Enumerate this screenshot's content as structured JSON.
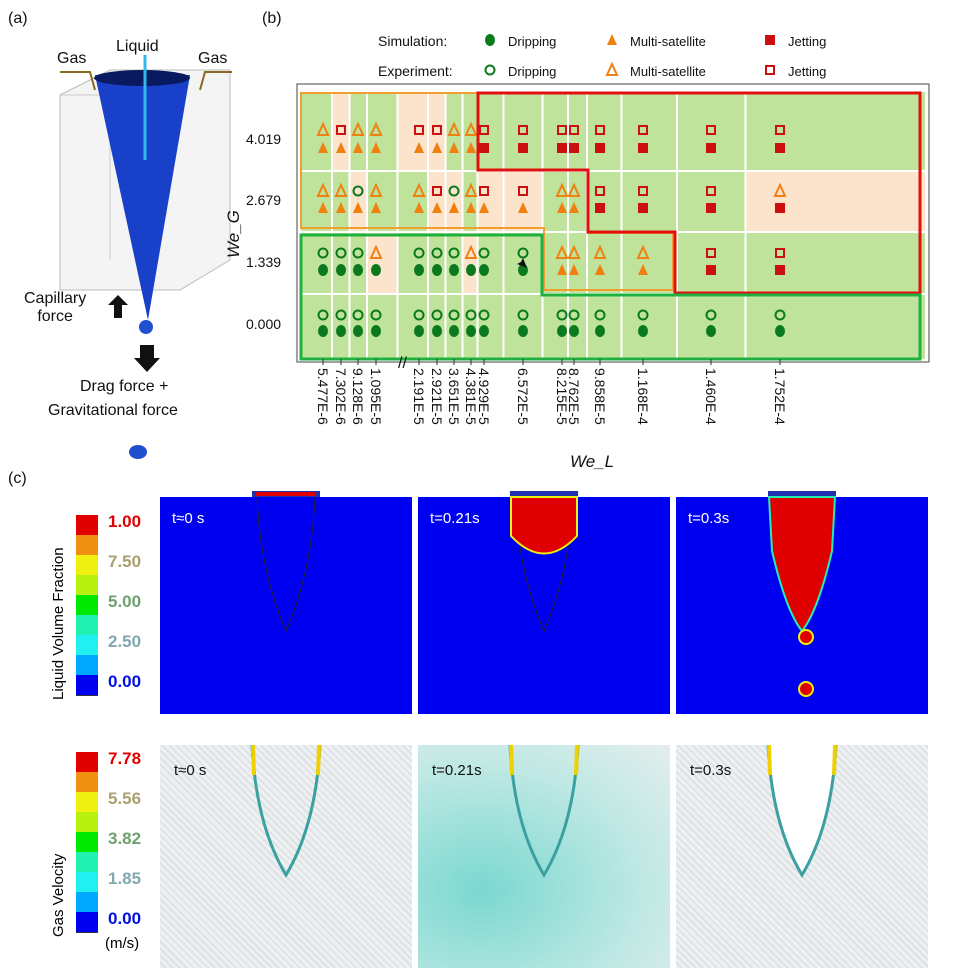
{
  "panels": {
    "a": "(a)",
    "b": "(b)",
    "c": "(c)"
  },
  "panel_a": {
    "liquid": "Liquid",
    "gas_left": "Gas",
    "gas_right": "Gas",
    "capillary": "Capillary\nforce",
    "drag": "Drag force +",
    "grav": "Gravitational force"
  },
  "chart_data": {
    "type": "scatter",
    "title": "",
    "xlabel": "We_L",
    "ylabel": "We_G",
    "legend": {
      "simulation_label": "Simulation:",
      "experiment_label": "Experiment:",
      "entries": [
        "Dripping",
        "Multi-satellite",
        "Jetting"
      ],
      "placement": "top"
    },
    "x_ticks": [
      "5.477E-6",
      "7.302E-6",
      "9.128E-6",
      "1.095E-5",
      "2.191E-5",
      "2.921E-5",
      "3.651E-5",
      "4.381E-5",
      "4.929E-5",
      "6.572E-5",
      "8.215E-5",
      "8.762E-5",
      "9.858E-5",
      "1.168E-4",
      "1.460E-4",
      "1.752E-4"
    ],
    "y_ticks": [
      "4.019",
      "2.679",
      "1.339",
      "0.000"
    ],
    "simulation": [
      [
        "M",
        "M",
        "M",
        "M",
        "M",
        "M",
        "M",
        "M",
        "J",
        "J",
        "J",
        "J",
        "J",
        "J",
        "J",
        "J"
      ],
      [
        "M",
        "M",
        "M",
        "M",
        "M",
        "M",
        "M",
        "M",
        "M",
        "M",
        "M",
        "M",
        "J",
        "J",
        "J",
        "J"
      ],
      [
        "D",
        "D",
        "D",
        "D",
        "D",
        "D",
        "D",
        "D",
        "D",
        "D",
        "M",
        "M",
        "M",
        "M",
        "J",
        "J"
      ],
      [
        "D",
        "D",
        "D",
        "D",
        "D",
        "D",
        "D",
        "D",
        "D",
        "D",
        "D",
        "D",
        "D",
        "D",
        "D",
        "D"
      ]
    ],
    "experiment": [
      [
        "M",
        "J",
        "M",
        "M",
        "J",
        "J",
        "M",
        "M",
        "J",
        "J",
        "J",
        "J",
        "J",
        "J",
        "J",
        "J"
      ],
      [
        "M",
        "M",
        "D",
        "M",
        "M",
        "J",
        "D",
        "M",
        "J",
        "J",
        "M",
        "M",
        "J",
        "J",
        "J",
        "M"
      ],
      [
        "D",
        "D",
        "D",
        "M",
        "D",
        "D",
        "D",
        "M",
        "D",
        "D",
        "M",
        "M",
        "M",
        "M",
        "J",
        "J"
      ],
      [
        "D",
        "D",
        "D",
        "D",
        "D",
        "D",
        "D",
        "D",
        "D",
        "D",
        "D",
        "D",
        "D",
        "D",
        "D",
        "D"
      ]
    ],
    "colors": {
      "D": "#0b7a1e",
      "M": "#f08010",
      "J": "#cc1010",
      "cell": "#bfe39b",
      "mismatch": "#fbe3cc"
    }
  },
  "panel_c": {
    "lvf": {
      "title": "Liquid Volume Fraction",
      "ticks": [
        "1.00",
        "7.50",
        "5.00",
        "2.50",
        "0.00"
      ],
      "tick_colors": [
        "#e00000",
        "#a8a070",
        "#70a070",
        "#80a8b0",
        "#0010e0"
      ]
    },
    "gv": {
      "title": "Gas Velocity",
      "ticks": [
        "7.78",
        "5.56",
        "3.82",
        "1.85",
        "0.00"
      ],
      "unit": "(m/s)",
      "tick_colors": [
        "#e00000",
        "#a8a070",
        "#70a070",
        "#80a8b0",
        "#0010e0"
      ]
    },
    "bands": [
      "#0000f0",
      "#00a8ff",
      "#20f0f0",
      "#20f0b0",
      "#00e800",
      "#b8f010",
      "#f0f010",
      "#f09010",
      "#e00000"
    ],
    "times": [
      "t≈0 s",
      "t=0.21s",
      "t=0.3s"
    ]
  }
}
